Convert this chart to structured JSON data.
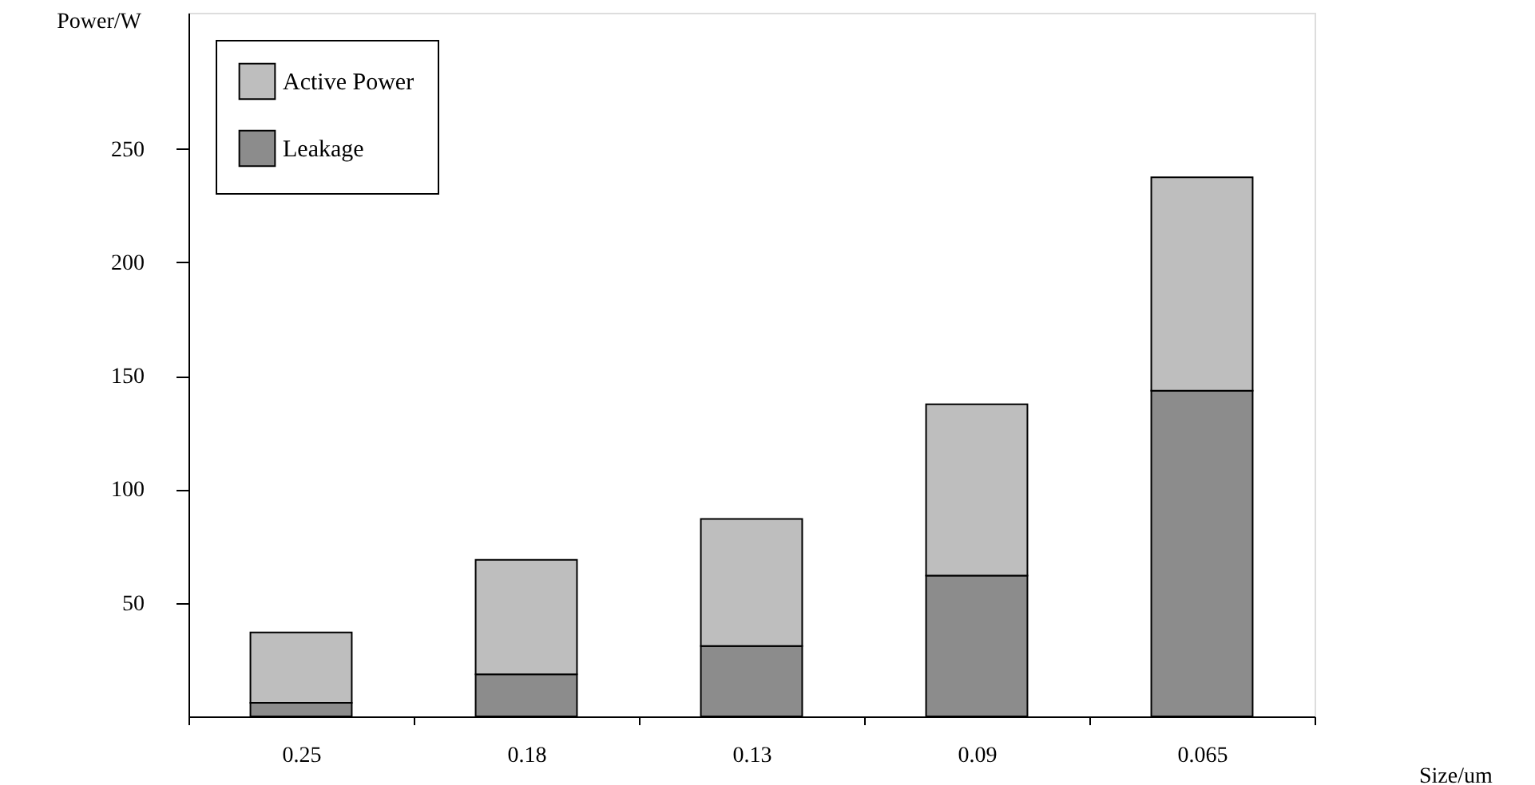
{
  "chart_data": {
    "type": "bar",
    "stacked": true,
    "xlabel": "Size/um",
    "ylabel": "Power/W",
    "categories": [
      "0.25",
      "0.18",
      "0.13",
      "0.09",
      "0.065"
    ],
    "series": [
      {
        "name": "Leakage",
        "color": "#8c8c8c",
        "values": [
          6,
          18.5,
          31,
          62,
          143.5
        ]
      },
      {
        "name": "Active Power",
        "color": "#bebebe",
        "values": [
          31,
          50.5,
          56,
          75.5,
          94
        ]
      }
    ],
    "ylim": [
      0,
      310
    ],
    "yticks": [
      50,
      100,
      150,
      200,
      250
    ],
    "grid": false,
    "legend": "top left"
  }
}
